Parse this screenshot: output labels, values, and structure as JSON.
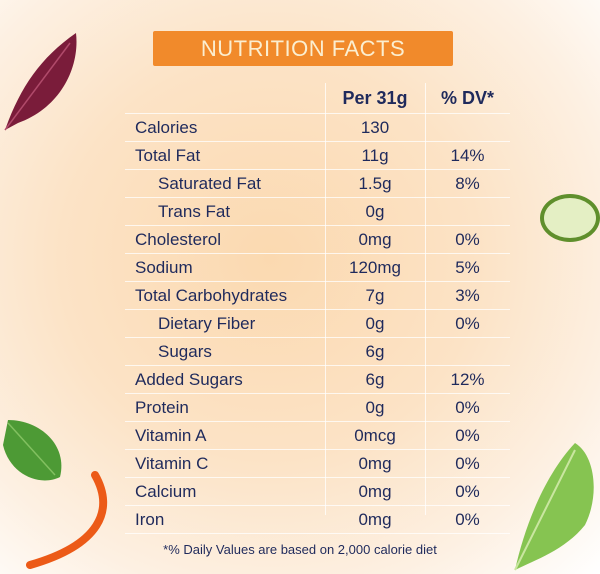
{
  "title": "NUTRITION FACTS",
  "columns": {
    "nutrient": "",
    "per": "Per 31g",
    "dv": "% DV*"
  },
  "rows": [
    {
      "name": "Calories",
      "per": "130",
      "dv": "",
      "indent": false
    },
    {
      "name": "Total Fat",
      "per": "11g",
      "dv": "14%",
      "indent": false
    },
    {
      "name": "Saturated Fat",
      "per": "1.5g",
      "dv": "8%",
      "indent": true
    },
    {
      "name": "Trans Fat",
      "per": "0g",
      "dv": "",
      "indent": true
    },
    {
      "name": "Cholesterol",
      "per": "0mg",
      "dv": "0%",
      "indent": false
    },
    {
      "name": "Sodium",
      "per": "120mg",
      "dv": "5%",
      "indent": false
    },
    {
      "name": "Total Carbohydrates",
      "per": "7g",
      "dv": "3%",
      "indent": false
    },
    {
      "name": "Dietary Fiber",
      "per": "0g",
      "dv": "0%",
      "indent": true
    },
    {
      "name": "Sugars",
      "per": "6g",
      "dv": "",
      "indent": true
    },
    {
      "name": "Added Sugars",
      "per": "6g",
      "dv": "12%",
      "indent": false
    },
    {
      "name": "Protein",
      "per": "0g",
      "dv": "0%",
      "indent": false
    },
    {
      "name": "Vitamin A",
      "per": "0mcg",
      "dv": "0%",
      "indent": false
    },
    {
      "name": "Vitamin C",
      "per": "0mg",
      "dv": "0%",
      "indent": false
    },
    {
      "name": "Calcium",
      "per": "0mg",
      "dv": "0%",
      "indent": false
    },
    {
      "name": "Iron",
      "per": "0mg",
      "dv": "0%",
      "indent": false
    }
  ],
  "footnote": "*% Daily Values are based on 2,000 calorie diet",
  "colors": {
    "title_bg": "#f18a2b",
    "text": "#1f2a5c"
  }
}
